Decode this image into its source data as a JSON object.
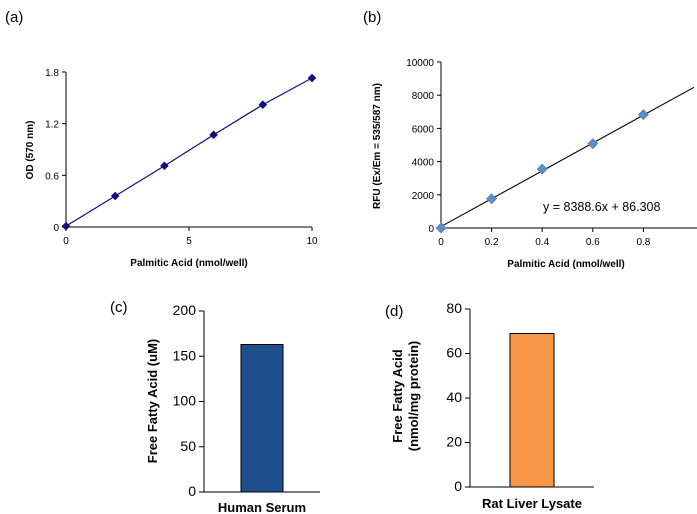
{
  "chart_data": [
    {
      "panel": "(a)",
      "type": "line",
      "xlabel": "Palmitic Acid (nmol/well)",
      "ylabel": "OD (570 nm)",
      "x_ticks": [
        "0",
        "5",
        "10"
      ],
      "y_ticks": [
        "0",
        "0.6",
        "1.2",
        "1.8"
      ],
      "xlim": [
        0,
        10
      ],
      "ylim": [
        0,
        1.8
      ],
      "grid": false,
      "color": "#0d0d80",
      "series": [
        {
          "x": [
            0,
            2,
            4,
            6,
            8,
            10
          ],
          "y": [
            0.01,
            0.36,
            0.71,
            1.07,
            1.42,
            1.73
          ]
        }
      ]
    },
    {
      "panel": "(b)",
      "type": "scatter",
      "xlabel": "Palmitic Acid (nmol/well)",
      "ylabel": "RFU (Ex/Em = 535/587 nm)",
      "x_ticks": [
        "0",
        "0.2",
        "0.4",
        "0.6",
        "0.8"
      ],
      "y_ticks": [
        "0",
        "2000",
        "4000",
        "6000",
        "8000",
        "10000"
      ],
      "xlim": [
        0,
        1
      ],
      "ylim": [
        0,
        10000
      ],
      "grid": false,
      "color": "#5b8fc9",
      "annotation": "y = 8388.6x + 86.308",
      "trendline": {
        "slope": 8388.6,
        "intercept": 86.308
      },
      "series": [
        {
          "x": [
            0,
            0.2,
            0.4,
            0.6,
            0.8
          ],
          "y": [
            0,
            1760,
            3550,
            5080,
            6830
          ]
        }
      ]
    },
    {
      "panel": "(c)",
      "type": "bar",
      "categories": [
        "Human Serum"
      ],
      "values": [
        163
      ],
      "ylabel": "Free Fatty Acid (uM)",
      "y_ticks": [
        "0",
        "50",
        "100",
        "150",
        "200"
      ],
      "ylim": [
        0,
        200
      ],
      "grid": false,
      "color": "#1f4e8c"
    },
    {
      "panel": "(d)",
      "type": "bar",
      "categories": [
        "Rat Liver Lysate"
      ],
      "values": [
        69
      ],
      "ylabel": [
        "Free Fatty Acid",
        "(nmol/mg protein)"
      ],
      "y_ticks": [
        "0",
        "20",
        "40",
        "60",
        "80"
      ],
      "ylim": [
        0,
        80
      ],
      "grid": false,
      "color": "#f79646"
    }
  ]
}
